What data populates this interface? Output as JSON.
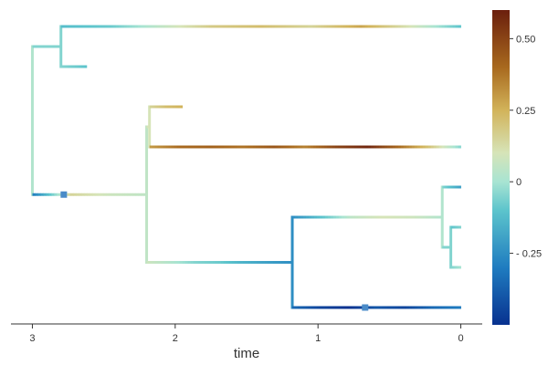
{
  "chart_data": {
    "type": "phylogenetic-tree",
    "xlabel": "time",
    "x_axis": {
      "reversed": true,
      "range": [
        3.15,
        -0.15
      ],
      "ticks": [
        3,
        2,
        1,
        0
      ],
      "tick_labels": [
        "3",
        "2",
        "1",
        "0"
      ]
    },
    "colorbar": {
      "range": [
        -0.5,
        0.6
      ],
      "ticks": [
        0.5,
        0.25,
        0,
        -0.25
      ],
      "tick_labels": [
        "0.50",
        "0.25",
        "0",
        "- 0.25"
      ],
      "colorscale": [
        {
          "v": -0.5,
          "color": "#08318f"
        },
        {
          "v": -0.3,
          "color": "#1f7cc0"
        },
        {
          "v": -0.1,
          "color": "#5cc4cc"
        },
        {
          "v": 0.0,
          "color": "#a8e4d2"
        },
        {
          "v": 0.1,
          "color": "#d6e4b8"
        },
        {
          "v": 0.25,
          "color": "#d2b35a"
        },
        {
          "v": 0.4,
          "color": "#a8691e"
        },
        {
          "v": 0.6,
          "color": "#6b1f0d"
        }
      ]
    },
    "tree": {
      "name": "root",
      "time": 3.0,
      "value": 0.02,
      "children": [
        {
          "name": "n1",
          "time": 2.8,
          "value": -0.05,
          "children": [
            {
              "name": "t1",
              "time": 0.0,
              "value_profile": [
                -0.12,
                -0.08,
                0.05,
                0.18,
                0.22,
                0.15,
                0.28,
                0.1,
                -0.1
              ]
            },
            {
              "name": "t2",
              "time": 2.62,
              "value_profile": [
                -0.05,
                -0.1
              ]
            }
          ]
        },
        {
          "name": "n2",
          "time": 2.2,
          "value_profile": [
            -0.3,
            0.15,
            0.08,
            0.05
          ],
          "children": [
            {
              "name": "n3",
              "time": 2.18,
              "value": 0.1,
              "children": [
                {
                  "name": "t3",
                  "time": 1.95,
                  "value_profile": [
                    0.15,
                    0.22,
                    0.25
                  ]
                },
                {
                  "name": "t4",
                  "time": 0.0,
                  "value_profile": [
                    0.3,
                    0.4,
                    0.42,
                    0.38,
                    0.45,
                    0.35,
                    0.5,
                    0.58,
                    0.4,
                    0.2,
                    -0.05
                  ]
                }
              ]
            },
            {
              "name": "n4",
              "time": 1.18,
              "value_profile": [
                0.08,
                0.02,
                -0.05,
                -0.08,
                -0.15,
                -0.2,
                -0.25
              ],
              "children": [
                {
                  "name": "n5",
                  "time": 0.13,
                  "value_profile": [
                    -0.25,
                    -0.1,
                    0.05,
                    0.1,
                    0.08,
                    0.02
                  ],
                  "children": [
                    {
                      "name": "t5",
                      "time": 0.0,
                      "value_profile": [
                        -0.05,
                        -0.2
                      ]
                    },
                    {
                      "name": "n6",
                      "time": 0.07,
                      "value": -0.05,
                      "children": [
                        {
                          "name": "t6",
                          "time": 0.0,
                          "value_profile": [
                            -0.1,
                            -0.05
                          ]
                        },
                        {
                          "name": "t7",
                          "time": 0.0,
                          "value_profile": [
                            -0.05,
                            0.0
                          ]
                        }
                      ]
                    }
                  ]
                },
                {
                  "name": "t8",
                  "time": 0.0,
                  "value_profile": [
                    -0.35,
                    -0.45,
                    -0.5,
                    -0.4,
                    -0.45,
                    -0.35,
                    -0.3
                  ]
                }
              ]
            }
          ]
        }
      ]
    },
    "markers": [
      {
        "branch": "n2",
        "time": 2.78,
        "color": "#4a8bc8"
      },
      {
        "branch": "t8",
        "time": 0.67,
        "color": "#4a8bc8"
      }
    ]
  }
}
